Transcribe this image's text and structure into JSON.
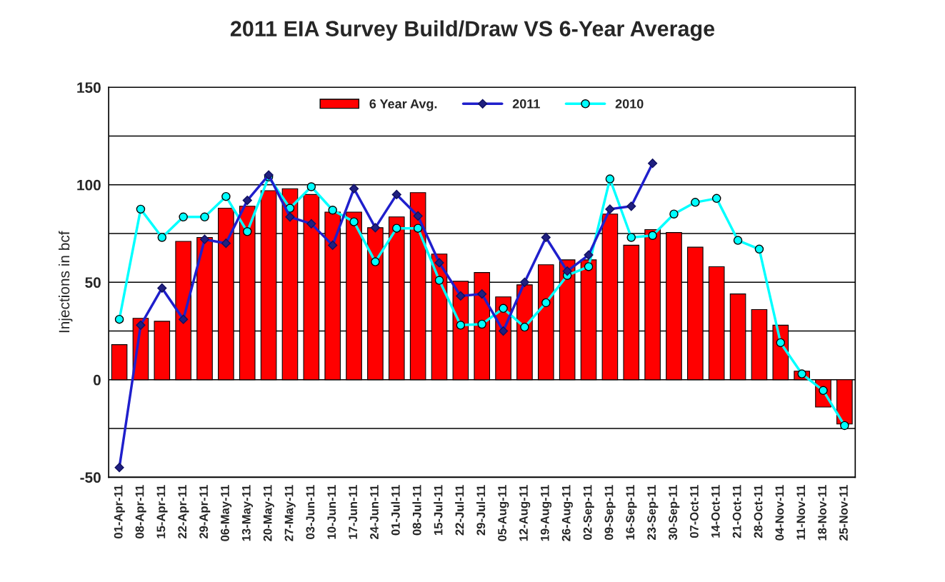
{
  "chart_data": {
    "type": "bar",
    "title": "2011 EIA Survey Build/Draw VS 6-Year Average",
    "ylabel": "Injections in bcf",
    "categories": [
      "01-Apr-11",
      "08-Apr-11",
      "15-Apr-11",
      "22-Apr-11",
      "29-Apr-11",
      "06-May-11",
      "13-May-11",
      "20-May-11",
      "27-May-11",
      "03-Jun-11",
      "10-Jun-11",
      "17-Jun-11",
      "24-Jun-11",
      "01-Jul-11",
      "08-Jul-11",
      "15-Jul-11",
      "22-Jul-11",
      "29-Jul-11",
      "05-Aug-11",
      "12-Aug-11",
      "19-Aug-11",
      "26-Aug-11",
      "02-Sep-11",
      "09-Sep-11",
      "16-Sep-11",
      "23-Sep-11",
      "30-Sep-11",
      "07-Oct-11",
      "14-Oct-11",
      "21-Oct-11",
      "28-Oct-11",
      "04-Nov-11",
      "11-Nov-11",
      "18-Nov-11",
      "25-Nov-11"
    ],
    "series": [
      {
        "name": "6 Year Avg.",
        "color": "#ff0000",
        "values": [
          18,
          31.5,
          30,
          71,
          73,
          88,
          89,
          97,
          98,
          95,
          86,
          86,
          78,
          83.5,
          96,
          64.5,
          50.5,
          55,
          42.5,
          48.7,
          59,
          61.5,
          61.5,
          85,
          69,
          77,
          75.5,
          68,
          58,
          44,
          36,
          28,
          4.4,
          -14,
          -22.7
        ]
      },
      {
        "name": "2011",
        "type": "line",
        "color": "#1f1fcc",
        "marker": "diamond",
        "values": [
          -45,
          28,
          47,
          31,
          72,
          70,
          92,
          105,
          83.5,
          80,
          69,
          98,
          78,
          95,
          84,
          60,
          43,
          44,
          25,
          50,
          73,
          55.7,
          64,
          87.5,
          89,
          111,
          null,
          null,
          null,
          null,
          null,
          null,
          null,
          null,
          null
        ]
      },
      {
        "name": "2010",
        "type": "line",
        "color": "#00ffff",
        "marker": "circle",
        "values": [
          31,
          87.5,
          73,
          83.5,
          83.5,
          94,
          76,
          104,
          88,
          99,
          87,
          81,
          60.5,
          77.7,
          77.7,
          51,
          28,
          28.5,
          36.6,
          27,
          39.5,
          53.5,
          58,
          103,
          73,
          74,
          85,
          91,
          93,
          71.5,
          67,
          19,
          3,
          -5.5,
          -23.5
        ]
      }
    ],
    "ylim": [
      -50,
      150
    ],
    "yticks": [
      -50,
      {
        "value": -25,
        "label": null
      },
      0,
      {
        "value": 25,
        "label": null
      },
      50,
      {
        "value": 75,
        "label": null
      },
      100,
      {
        "value": 125,
        "label": null
      },
      150
    ],
    "grid": "y",
    "legend": "top"
  }
}
